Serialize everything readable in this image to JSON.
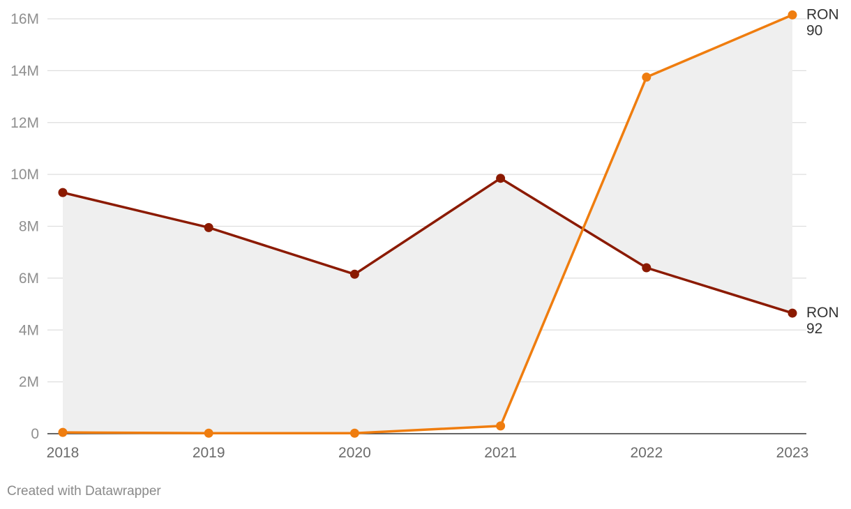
{
  "chart_data": {
    "type": "line",
    "x": [
      "2018",
      "2019",
      "2020",
      "2021",
      "2022",
      "2023"
    ],
    "ylim": [
      0,
      16000000
    ],
    "yticks": [
      0,
      2000000,
      4000000,
      6000000,
      8000000,
      10000000,
      12000000,
      14000000,
      16000000
    ],
    "ytick_labels": [
      "0",
      "2M",
      "4M",
      "6M",
      "8M",
      "10M",
      "12M",
      "14M",
      "16M"
    ],
    "grid": true,
    "area_between_series": true,
    "series": [
      {
        "name": "RON 92",
        "label_lines": [
          "RON",
          "92"
        ],
        "color": "#8b1a00",
        "values": [
          9300000,
          7950000,
          6150000,
          9850000,
          6400000,
          4650000
        ]
      },
      {
        "name": "RON 90",
        "label_lines": [
          "RON",
          "90"
        ],
        "color": "#ef7d0f",
        "values": [
          50000,
          20000,
          20000,
          300000,
          13750000,
          16150000
        ]
      }
    ]
  },
  "footer": {
    "credit": "Created with Datawrapper"
  },
  "colors": {
    "area_fill": "#efefef",
    "grid": "#dedede",
    "baseline": "#333333"
  }
}
